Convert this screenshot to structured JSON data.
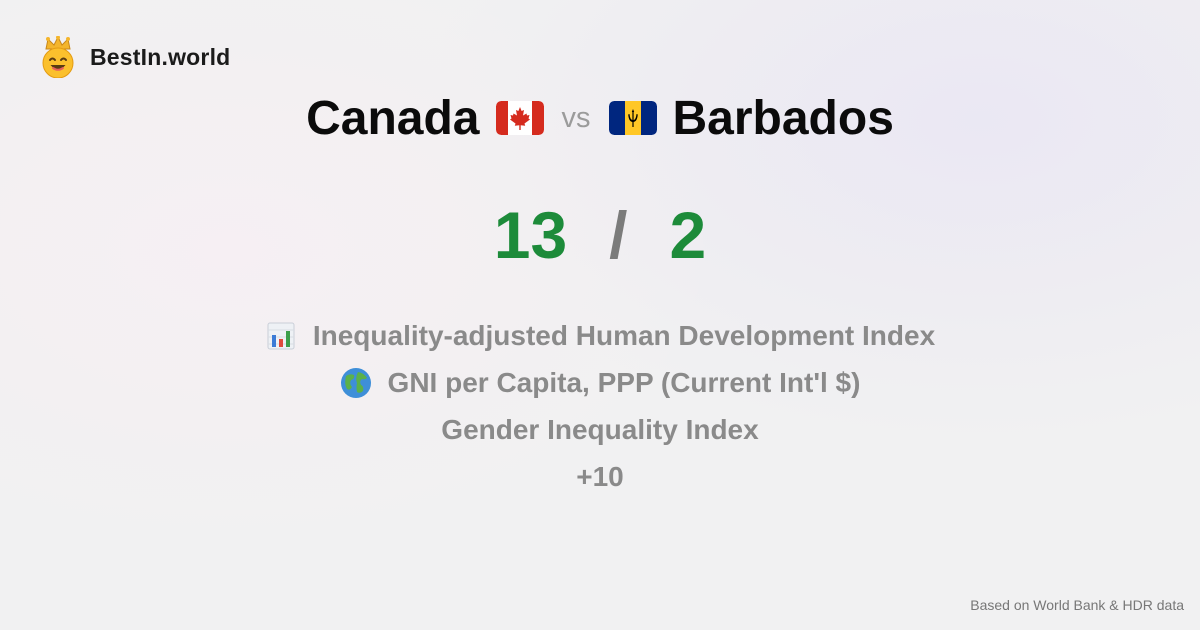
{
  "brand": {
    "name": "BestIn.world",
    "logo_icon": "crown-smiley-icon"
  },
  "comparison": {
    "country_a": {
      "name": "Canada",
      "flag_icon": "canada-flag-icon"
    },
    "vs_label": "vs",
    "country_b": {
      "name": "Barbados",
      "flag_icon": "barbados-flag-icon"
    }
  },
  "score": {
    "a": "13",
    "separator": "/",
    "b": "2",
    "color": "#1d8b3a"
  },
  "metrics": [
    {
      "label": "Inequality-adjusted Human Development Index",
      "icon": "bar-chart-icon"
    },
    {
      "label": "GNI per Capita, PPP (Current Int'l $)",
      "icon": "globe-icon"
    },
    {
      "label": "Gender Inequality Index",
      "icon": ""
    },
    {
      "label": "+10",
      "icon": ""
    }
  ],
  "footer": {
    "source_note": "Based on World Bank & HDR data"
  }
}
